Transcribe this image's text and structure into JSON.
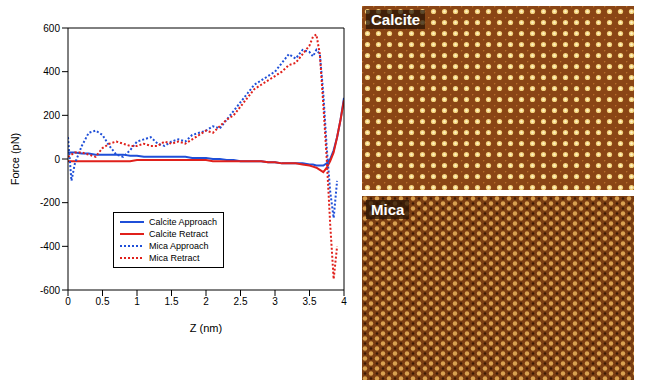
{
  "chart_data": {
    "type": "line",
    "xlabel": "Z (nm)",
    "ylabel": "Force (pN)",
    "x": [
      0,
      0.05,
      0.1,
      0.2,
      0.3,
      0.4,
      0.5,
      0.6,
      0.7,
      0.8,
      0.9,
      1.0,
      1.1,
      1.2,
      1.3,
      1.4,
      1.5,
      1.6,
      1.7,
      1.8,
      1.9,
      2.0,
      2.1,
      2.2,
      2.3,
      2.4,
      2.5,
      2.6,
      2.7,
      2.8,
      2.9,
      3.0,
      3.1,
      3.2,
      3.3,
      3.4,
      3.5,
      3.55,
      3.6,
      3.65,
      3.7,
      3.75,
      3.8,
      3.85,
      3.9,
      3.95,
      4.0
    ],
    "series": [
      {
        "name": "Calcite Approach",
        "color": "#1f4fd8",
        "line_style": "solid",
        "values": [
          30,
          30,
          30,
          25,
          25,
          20,
          20,
          20,
          20,
          20,
          15,
          15,
          10,
          10,
          10,
          10,
          10,
          10,
          10,
          5,
          5,
          5,
          0,
          0,
          -5,
          -5,
          -10,
          -10,
          -10,
          -10,
          -15,
          -15,
          -20,
          -20,
          -20,
          -20,
          -25,
          -25,
          -30,
          -30,
          -30,
          -20,
          0,
          40,
          100,
          180,
          280
        ]
      },
      {
        "name": "Calcite Retract",
        "color": "#e0201b",
        "line_style": "solid",
        "values": [
          -10,
          -10,
          -10,
          -10,
          -10,
          -10,
          -10,
          -10,
          -10,
          -10,
          -10,
          -5,
          -5,
          -5,
          -5,
          -5,
          -5,
          -5,
          -5,
          -5,
          -5,
          -5,
          -10,
          -10,
          -10,
          -10,
          -10,
          -10,
          -10,
          -10,
          -15,
          -15,
          -20,
          -20,
          -20,
          -25,
          -30,
          -35,
          -40,
          -50,
          -60,
          -40,
          -10,
          30,
          100,
          180,
          270
        ]
      },
      {
        "name": "Mica Approach",
        "color": "#1f4fd8",
        "line_style": "dotted",
        "values": [
          100,
          -100,
          -20,
          60,
          120,
          130,
          110,
          60,
          20,
          10,
          40,
          80,
          90,
          100,
          70,
          60,
          80,
          90,
          80,
          110,
          120,
          130,
          150,
          140,
          180,
          220,
          260,
          300,
          340,
          360,
          380,
          400,
          440,
          480,
          460,
          500,
          490,
          470,
          500,
          480,
          300,
          50,
          -150,
          -270,
          -100,
          null,
          null
        ]
      },
      {
        "name": "Mica Retract",
        "color": "#e0201b",
        "line_style": "dotted",
        "values": [
          10,
          20,
          30,
          30,
          20,
          10,
          50,
          70,
          80,
          70,
          60,
          60,
          70,
          60,
          60,
          80,
          70,
          80,
          70,
          90,
          110,
          130,
          120,
          150,
          180,
          200,
          240,
          280,
          320,
          340,
          360,
          380,
          400,
          430,
          440,
          480,
          520,
          560,
          570,
          480,
          250,
          0,
          -300,
          -550,
          -400,
          null,
          null
        ]
      }
    ],
    "xlim": [
      0,
      4
    ],
    "xticks": [
      0,
      0.5,
      1,
      1.5,
      2,
      2.5,
      3,
      3.5,
      4
    ],
    "ylim": [
      -600,
      600
    ],
    "yticks": [
      -600,
      -400,
      -200,
      0,
      200,
      400,
      600
    ],
    "legend": "lower left",
    "grid": false
  },
  "panels": [
    {
      "label": "Calcite"
    },
    {
      "label": "Mica"
    }
  ]
}
